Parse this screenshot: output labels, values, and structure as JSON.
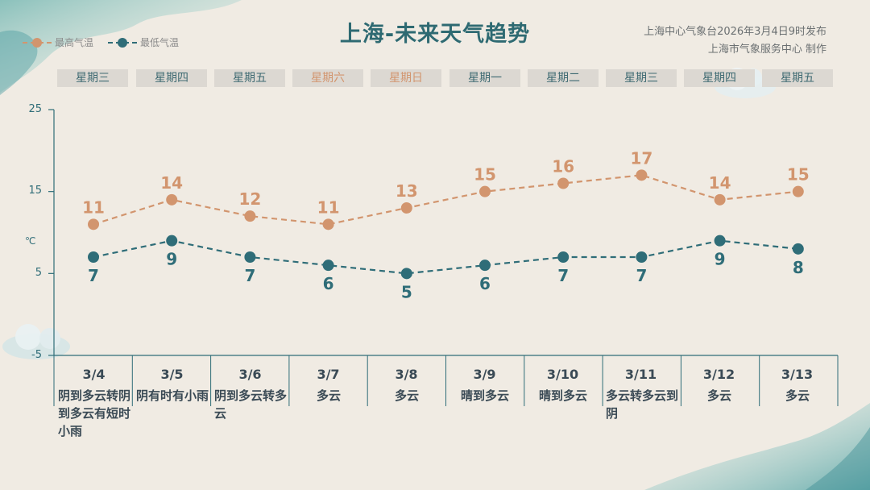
{
  "title": "上海-未来天气趋势",
  "source": {
    "line1": "上海中心气象台2026年3月4日9时发布",
    "line2": "上海市气象服务中心  制作"
  },
  "legend": {
    "high_label": "最高气温",
    "low_label": "最低气温"
  },
  "weekdays": [
    "星期三",
    "星期四",
    "星期五",
    "星期六",
    "星期日",
    "星期一",
    "星期二",
    "星期三",
    "星期四",
    "星期五"
  ],
  "days": [
    {
      "date": "3/4",
      "weather": "阴到多云转阴到多云有短时小雨"
    },
    {
      "date": "3/5",
      "weather": "阴有时有小雨"
    },
    {
      "date": "3/6",
      "weather": "阴到多云转多云"
    },
    {
      "date": "3/7",
      "weather": "多云"
    },
    {
      "date": "3/8",
      "weather": "多云"
    },
    {
      "date": "3/9",
      "weather": "晴到多云"
    },
    {
      "date": "3/10",
      "weather": "晴到多云"
    },
    {
      "date": "3/11",
      "weather": "多云转多云到阴"
    },
    {
      "date": "3/12",
      "weather": "多云"
    },
    {
      "date": "3/13",
      "weather": "多云"
    }
  ],
  "colors": {
    "high": "#d2956e",
    "low": "#2f6d78",
    "title": "#2e6a72",
    "weekend": "#d2956e",
    "weekday": "#3e6a72"
  },
  "chart_data": {
    "type": "line",
    "title": "上海-未来天气趋势",
    "categories": [
      "3/4",
      "3/5",
      "3/6",
      "3/7",
      "3/8",
      "3/9",
      "3/10",
      "3/11",
      "3/12",
      "3/13"
    ],
    "series": [
      {
        "name": "最高气温",
        "values": [
          11,
          14,
          12,
          11,
          13,
          15,
          16,
          17,
          14,
          15
        ]
      },
      {
        "name": "最低气温",
        "values": [
          7,
          9,
          7,
          6,
          5,
          6,
          7,
          7,
          9,
          8
        ]
      }
    ],
    "ylabel": "℃",
    "ylim": [
      -5,
      25
    ],
    "yticks": [
      "25",
      "15",
      "5",
      "-5"
    ],
    "grid": false,
    "legend_position": "top-left"
  }
}
